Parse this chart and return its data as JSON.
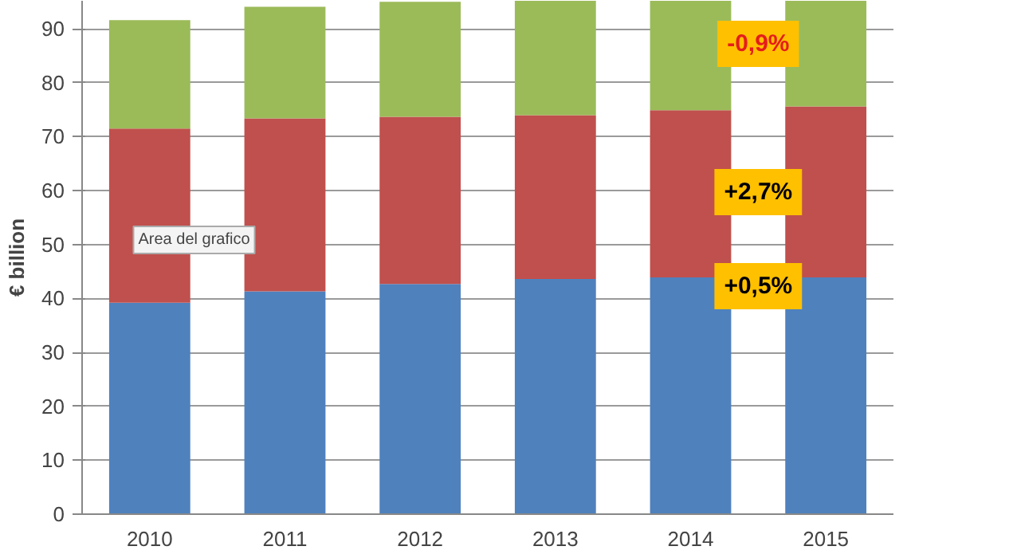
{
  "chart_data": {
    "type": "bar",
    "stacked": true,
    "ylabel": "€ billion",
    "categories": [
      "2010",
      "2011",
      "2012",
      "2013",
      "2014",
      "2015"
    ],
    "series": [
      {
        "color": "#4f81bd",
        "values": [
          39.2,
          41.3,
          42.7,
          43.6,
          43.9,
          43.9
        ]
      },
      {
        "color": "#c0504d",
        "values": [
          32.3,
          32.1,
          31.0,
          30.4,
          31.0,
          31.7
        ]
      },
      {
        "color": "#9bbb59",
        "values": [
          20.1,
          20.7,
          21.3,
          21.2,
          20.3,
          19.6
        ]
      }
    ],
    "ylim": [
      0,
      95.2
    ],
    "yticks": [
      0,
      10,
      20,
      30,
      40,
      50,
      60,
      70,
      80,
      90
    ],
    "grid": "y",
    "annotations": [
      "-0,9%",
      "+2,7%",
      "+0,5%",
      "Area del grafico"
    ]
  }
}
